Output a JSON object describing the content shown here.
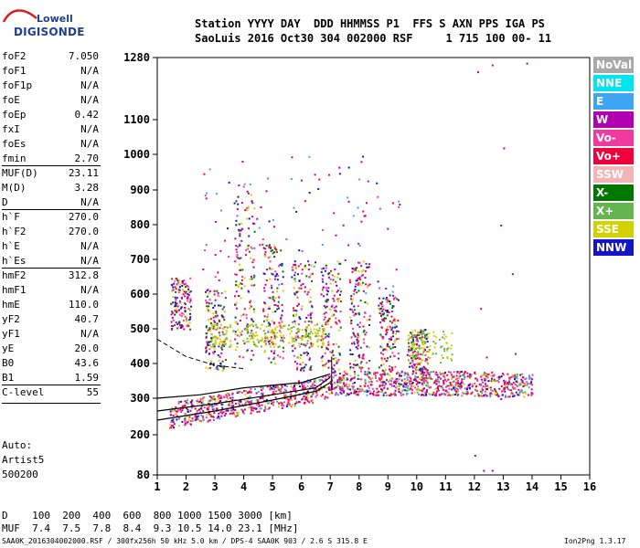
{
  "logo": {
    "line1": "Lowell",
    "line2": "DIGISONDE"
  },
  "header": {
    "line1": "Station YYYY DAY  DDD HHMMSS P1  FFS S AXN PPS IGA PS",
    "line2": "SaoLuis 2016 Oct30 304 002000 RSF     1 715 100 00- 11"
  },
  "params": [
    {
      "name": "foF2",
      "value": "7.050"
    },
    {
      "name": "foF1",
      "value": "N/A"
    },
    {
      "name": "foF1p",
      "value": "N/A"
    },
    {
      "name": "foE",
      "value": "N/A"
    },
    {
      "name": "foEp",
      "value": "0.42"
    },
    {
      "name": "fxI",
      "value": "N/A"
    },
    {
      "name": "foEs",
      "value": "N/A"
    },
    {
      "name": "fmin",
      "value": "2.70"
    },
    {
      "name": "MUF(D)",
      "value": "23.11"
    },
    {
      "name": "M(D)",
      "value": "3.28"
    },
    {
      "name": "D",
      "value": "N/A"
    },
    {
      "name": "h`F",
      "value": "270.0"
    },
    {
      "name": "h`F2",
      "value": "270.0"
    },
    {
      "name": "h`E",
      "value": "N/A"
    },
    {
      "name": "h`Es",
      "value": "N/A"
    },
    {
      "name": "hmF2",
      "value": "312.8"
    },
    {
      "name": "hmF1",
      "value": "N/A"
    },
    {
      "name": "hmE",
      "value": "110.0"
    },
    {
      "name": "yF2",
      "value": "40.7"
    },
    {
      "name": "yF1",
      "value": "N/A"
    },
    {
      "name": "yE",
      "value": "20.0"
    },
    {
      "name": "B0",
      "value": "43.6"
    },
    {
      "name": "B1",
      "value": "1.59"
    },
    {
      "name": "C-level",
      "value": "55"
    }
  ],
  "auto": {
    "line1": "Auto:",
    "line2": "Artist5",
    "line3": "500200"
  },
  "legend": [
    {
      "label": "NoVal",
      "color": "#a8a8a8"
    },
    {
      "label": "NNE",
      "color": "#00e5f0"
    },
    {
      "label": "E",
      "color": "#3da5f2"
    },
    {
      "label": "W",
      "color": "#b000b0"
    },
    {
      "label": "Vo-",
      "color": "#f03aa0"
    },
    {
      "label": "Vo+",
      "color": "#f0003c"
    },
    {
      "label": "SSW",
      "color": "#f2b4b4"
    },
    {
      "label": "X-",
      "color": "#007800"
    },
    {
      "label": "X+",
      "color": "#64b450"
    },
    {
      "label": "SSE",
      "color": "#d2d200"
    },
    {
      "label": "NNW",
      "color": "#1414c8"
    }
  ],
  "bottom": {
    "line1": "D    100  200  400  600  800 1000 1500 3000 [km]",
    "line2": "MUF  7.4  7.5  7.8  8.4  9.3 10.5 14.0 23.1 [MHz]"
  },
  "footer": {
    "left": "SAA0K_2016304002000.RSF / 300fx256h 50 kHz 5.0 km / DPS-4 SAA0K 903 / 2.6 S 315.8 E",
    "right": "Ion2Png 1.3.17"
  },
  "chart_data": {
    "type": "scatter",
    "title": "",
    "xlabel": "",
    "ylabel": "",
    "x_range": [
      1,
      16
    ],
    "y_range": [
      80,
      1280
    ],
    "y_scale": "nonlinear (virtual height)",
    "x_ticks": [
      1,
      2,
      3,
      4,
      5,
      6,
      7,
      8,
      9,
      10,
      11,
      12,
      13,
      14,
      15,
      16
    ],
    "y_ticks": [
      80,
      200,
      300,
      400,
      500,
      600,
      700,
      800,
      900,
      1000,
      1100,
      1280
    ],
    "grid": false,
    "legend_position": "right",
    "clusters": [
      {
        "series": "Vo-",
        "x_range": [
          1.3,
          14.2
        ],
        "h_range": [
          250,
          400
        ],
        "description": "main F-layer trace band"
      },
      {
        "series": "SSE",
        "x_range": [
          2.8,
          6.8
        ],
        "h_range": [
          450,
          520
        ]
      },
      {
        "series": "W",
        "x_range": [
          2.6,
          6.2
        ],
        "h_range": [
          520,
          850
        ]
      },
      {
        "series": "SSE",
        "x_range": [
          9.8,
          11.2
        ],
        "h_range": [
          400,
          500
        ]
      },
      {
        "series": "NNW",
        "x_range": [
          7.8,
          9.2
        ],
        "h_range": [
          450,
          700
        ]
      }
    ],
    "profile_lines": {
      "description": "true height profile lines (black)",
      "x_range": [
        1.0,
        7.0
      ],
      "h_start": [
        240,
        300
      ],
      "h_end": [
        330,
        370
      ]
    },
    "foF2_marker": 7.05
  }
}
